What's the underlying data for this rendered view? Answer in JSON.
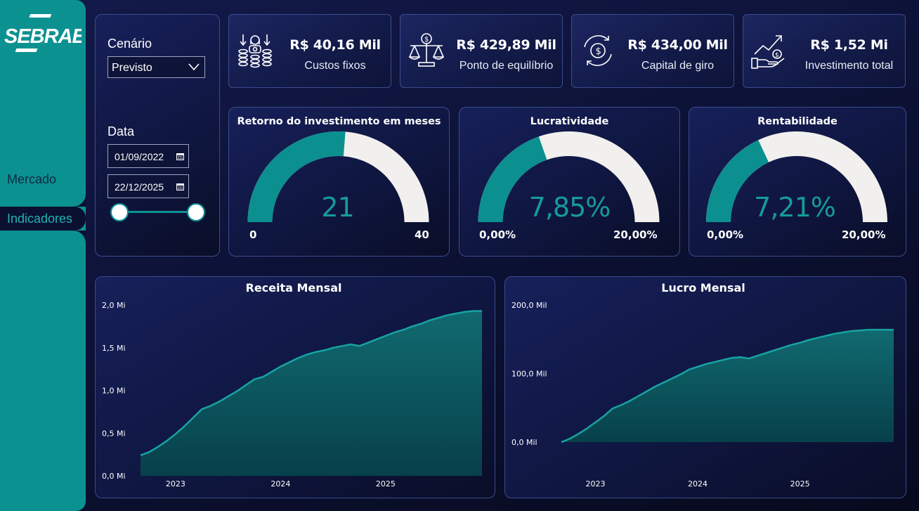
{
  "sidebar": {
    "logo_text": "SEBRAE",
    "nav_items": [
      "Mercado",
      "Indicadores"
    ],
    "active": "Indicadores"
  },
  "filters": {
    "scenario_label": "Cenário",
    "scenario_value": "Previsto",
    "date_label": "Data",
    "start_date": "01/09/2022",
    "end_date": "22/12/2025"
  },
  "kpis": [
    {
      "icon": "coins-icon",
      "value": "R$ 40,16 Mil",
      "label": "Custos fixos"
    },
    {
      "icon": "balance-scale-icon",
      "value": "R$ 429,89 Mil",
      "label": "Ponto de equilíbrio"
    },
    {
      "icon": "money-cycle-icon",
      "value": "R$ 434,00 Mil",
      "label": "Capital de giro"
    },
    {
      "icon": "hand-growth-icon",
      "value": "R$ 1,52 Mi",
      "label": "Investimento total"
    }
  ],
  "gauges": [
    {
      "title": "Retorno do investimento em meses",
      "value_text": "21",
      "value": 21,
      "min": 0,
      "max": 40,
      "min_text": "0",
      "max_text": "40"
    },
    {
      "title": "Lucratividade",
      "value_text": "7,85%",
      "value": 7.85,
      "min": 0,
      "max": 20,
      "min_text": "0,00%",
      "max_text": "20,00%"
    },
    {
      "title": "Rentabilidade",
      "value_text": "7,21%",
      "value": 7.21,
      "min": 0,
      "max": 20,
      "min_text": "0,00%",
      "max_text": "20,00%"
    }
  ],
  "colors": {
    "accent": "#0c9191",
    "gauge_fill": "#0c8f8f",
    "gauge_bg": "#f2f0ee"
  },
  "chart_data": [
    {
      "type": "area",
      "title": "Receita Mensal",
      "xlabel": "",
      "ylabel": "",
      "y_ticks": [
        "0,0 Mi",
        "0,5 Mi",
        "1,0 Mi",
        "1,5 Mi",
        "2,0 Mi"
      ],
      "y_tick_values": [
        0,
        0.5,
        1.0,
        1.5,
        2.0
      ],
      "ylim": [
        0,
        2.0
      ],
      "x_ticks": [
        "2023",
        "2024",
        "2025"
      ],
      "x_tick_values": [
        4,
        16,
        28
      ],
      "xlim": [
        0,
        39
      ],
      "series": [
        {
          "values": [
            0.24,
            0.28,
            0.34,
            0.41,
            0.49,
            0.58,
            0.68,
            0.78,
            0.82,
            0.87,
            0.93,
            0.99,
            1.06,
            1.13,
            1.16,
            1.22,
            1.28,
            1.33,
            1.38,
            1.42,
            1.45,
            1.47,
            1.5,
            1.52,
            1.54,
            1.52,
            1.56,
            1.6,
            1.64,
            1.68,
            1.71,
            1.75,
            1.78,
            1.82,
            1.85,
            1.88,
            1.9,
            1.92,
            1.93,
            1.93
          ]
        }
      ]
    },
    {
      "type": "area",
      "title": "Lucro Mensal",
      "xlabel": "",
      "ylabel": "",
      "y_ticks": [
        "0,0 Mil",
        "100,0 Mil",
        "200,0 Mil"
      ],
      "y_tick_values": [
        0,
        100,
        200
      ],
      "ylim": [
        0,
        200
      ],
      "x_ticks": [
        "2023",
        "2024",
        "2025"
      ],
      "x_tick_values": [
        4,
        16,
        28
      ],
      "xlim": [
        0,
        39
      ],
      "series": [
        {
          "values": [
            0,
            5,
            12,
            20,
            29,
            38,
            49,
            54,
            60,
            67,
            74,
            81,
            87,
            93,
            99,
            106,
            110,
            114,
            117,
            120,
            123,
            124,
            122,
            126,
            130,
            134,
            138,
            142,
            145,
            149,
            152,
            155,
            158,
            160,
            162,
            163,
            164,
            164,
            164,
            164
          ]
        }
      ]
    }
  ]
}
